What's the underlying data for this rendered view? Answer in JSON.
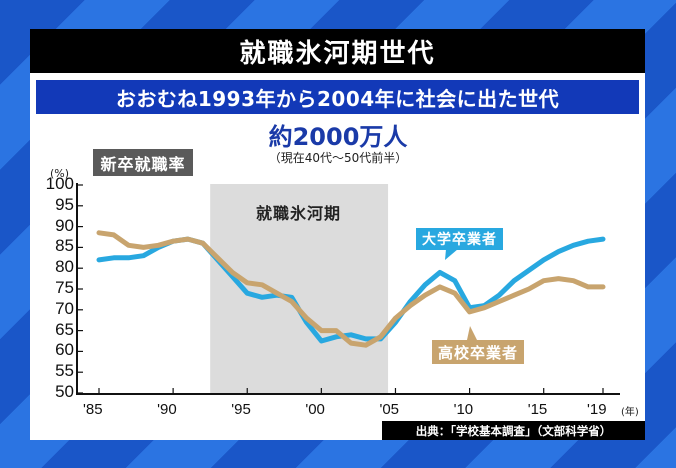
{
  "title": "就職氷河期世代",
  "subtitle": "おおむね1993年から2004年に社会に出た世代",
  "population": "約2000万人",
  "population_note": "（現在40代～50代前半）",
  "chart_label": "新卒就職率",
  "band_label": "就職氷河期",
  "unit_y": "(%)",
  "unit_x": "(年)",
  "source": "出典：「学校基本調査」（文部科学省）",
  "colors": {
    "background": "#1f5fd0",
    "title_bar": "#000000",
    "subtitle_bar": "#1239b8",
    "university": "#28a8e0",
    "high_school": "#c8a46e",
    "band": "#dcdcdc"
  },
  "chart_data": {
    "type": "line",
    "title": "新卒就職率",
    "xlabel": "(年)",
    "ylabel": "(%)",
    "ylim": [
      50,
      100
    ],
    "yticks": [
      "100",
      "95",
      "90",
      "85",
      "80",
      "75",
      "70",
      "65",
      "60",
      "55",
      "50"
    ],
    "xticks": [
      "'85",
      "'90",
      "'95",
      "'00",
      "'05",
      "'10",
      "'15",
      "'19"
    ],
    "xtick_years": [
      1985,
      1990,
      1995,
      2000,
      2005,
      2010,
      2015,
      2019
    ],
    "grid": false,
    "shaded_band": {
      "label": "就職氷河期",
      "from": 1992.5,
      "to": 2004.5
    },
    "x": [
      1985,
      1986,
      1987,
      1988,
      1989,
      1990,
      1991,
      1992,
      1993,
      1994,
      1995,
      1996,
      1997,
      1998,
      1999,
      2000,
      2001,
      2002,
      2003,
      2004,
      2005,
      2006,
      2007,
      2008,
      2009,
      2010,
      2011,
      2012,
      2013,
      2014,
      2015,
      2016,
      2017,
      2018,
      2019
    ],
    "series": [
      {
        "name": "大学卒業者",
        "color": "#28a8e0",
        "values": [
          82,
          82.5,
          82.5,
          83,
          85,
          86.5,
          87,
          86,
          82,
          78,
          74,
          73,
          73.5,
          73,
          67,
          62.5,
          63.5,
          64,
          63,
          63,
          67,
          72,
          76,
          79,
          77,
          70.5,
          71,
          73.5,
          77,
          79.5,
          82,
          84,
          85.5,
          86.5,
          87
        ]
      },
      {
        "name": "高校卒業者",
        "color": "#c8a46e",
        "values": [
          88.5,
          88,
          85.5,
          85,
          85.5,
          86.5,
          87,
          86,
          82.5,
          79,
          76.5,
          76,
          74,
          72,
          68,
          65,
          65,
          62,
          61.5,
          63.5,
          68,
          71,
          73.5,
          75.5,
          74,
          69.5,
          70.5,
          72,
          73.5,
          75,
          77,
          77.5,
          77,
          75.5,
          75.5
        ]
      }
    ]
  }
}
